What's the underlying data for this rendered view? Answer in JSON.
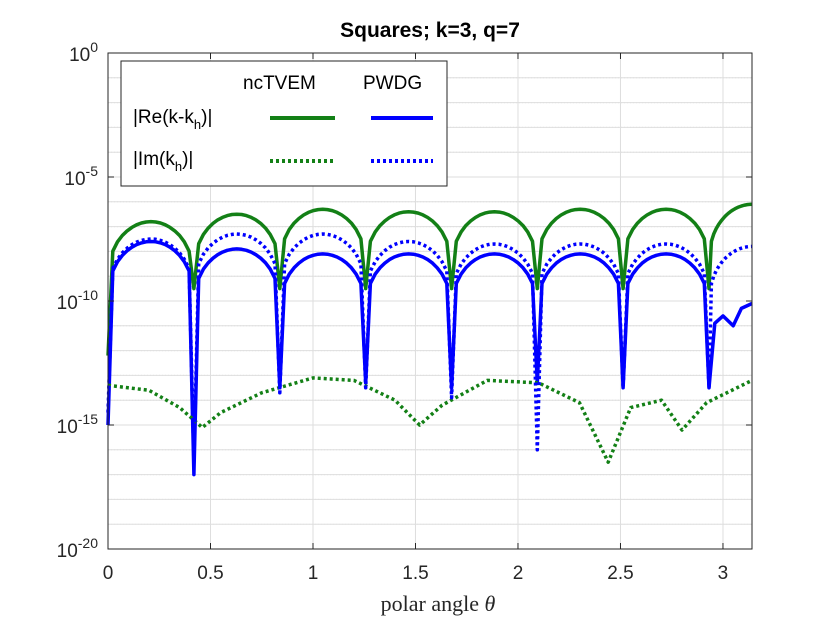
{
  "chart_data": {
    "type": "line",
    "title": "Squares; k=3, q=7",
    "xlabel": "polar angle θ",
    "xlabel_text": "polar angle",
    "xlabel_symbol": "θ",
    "ylabel": "",
    "yscale": "log",
    "xlim": [
      0,
      3.1416
    ],
    "ylim_exponents": [
      -20,
      0
    ],
    "grid": true,
    "x_ticks": [
      "0",
      "0.5",
      "1",
      "1.5",
      "2",
      "2.5",
      "3"
    ],
    "x_tick_values": [
      0,
      0.5,
      1,
      1.5,
      2,
      2.5,
      3
    ],
    "y_ticks": [
      {
        "base": "10",
        "exp": "0",
        "value": 0
      },
      {
        "base": "10",
        "exp": "-5",
        "value": -5
      },
      {
        "base": "10",
        "exp": "-10",
        "value": -10
      },
      {
        "base": "10",
        "exp": "-15",
        "value": -15
      },
      {
        "base": "10",
        "exp": "-20",
        "value": -20
      }
    ],
    "legend": {
      "placement": "top-left",
      "columns": [
        "ncTVEM",
        "PWDG"
      ],
      "rows": [
        {
          "label_main": "|Re(k-k",
          "label_sub": "h",
          "label_end": ")|"
        },
        {
          "label_main": "|Im(k",
          "label_sub": "h",
          "label_end": ")|"
        }
      ]
    },
    "series": [
      {
        "name": "ncTVEM |Re(k-k_h)|",
        "color": "#138016",
        "style": "solid",
        "dips_x": [
          0,
          0.419,
          0.838,
          1.257,
          1.676,
          2.094,
          2.513,
          2.932
        ],
        "dips_log": [
          -12.2,
          -9.5,
          -9.5,
          -9.5,
          -9.5,
          -9.5,
          -9.5,
          -9.5
        ],
        "peaks_x": [
          0.21,
          0.63,
          1.05,
          1.47,
          1.89,
          2.3,
          2.72,
          3.1416
        ],
        "peaks_log": [
          -6.8,
          -6.5,
          -6.3,
          -6.4,
          -6.4,
          -6.3,
          -6.3,
          -6.1
        ]
      },
      {
        "name": "PWDG |Re(k-k_h)|",
        "color": "#0000ff",
        "style": "solid",
        "dips_x": [
          0,
          0.419,
          0.838,
          1.257,
          1.676,
          2.094,
          2.513,
          2.932
        ],
        "dips_log": [
          -15.0,
          -17.0,
          -13.5,
          -13.3,
          -13.5,
          -13.3,
          -13.5,
          -13.5
        ],
        "peaks_x": [
          0.21,
          0.63,
          1.05,
          1.47,
          1.89,
          2.3,
          2.72
        ],
        "peaks_log": [
          -7.6,
          -7.9,
          -8.1,
          -8.1,
          -8.1,
          -8.1,
          -8.1
        ],
        "tail": [
          [
            2.96,
            -10.9
          ],
          [
            3.0,
            -10.6
          ],
          [
            3.05,
            -11.0
          ],
          [
            3.09,
            -10.3
          ],
          [
            3.1416,
            -10.1
          ]
        ]
      },
      {
        "name": "ncTVEM |Im(k_h)|",
        "color": "#138016",
        "style": "dotted",
        "points": [
          [
            0,
            -13.4
          ],
          [
            0.2,
            -13.6
          ],
          [
            0.35,
            -14.3
          ],
          [
            0.46,
            -15.1
          ],
          [
            0.55,
            -14.5
          ],
          [
            0.75,
            -13.7
          ],
          [
            1.0,
            -13.1
          ],
          [
            1.2,
            -13.2
          ],
          [
            1.4,
            -14.0
          ],
          [
            1.52,
            -15.0
          ],
          [
            1.63,
            -14.2
          ],
          [
            1.85,
            -13.2
          ],
          [
            2.1,
            -13.3
          ],
          [
            2.3,
            -14.1
          ],
          [
            2.44,
            -16.5
          ],
          [
            2.55,
            -14.3
          ],
          [
            2.7,
            -14.0
          ],
          [
            2.8,
            -15.2
          ],
          [
            2.92,
            -14.1
          ],
          [
            3.1416,
            -13.2
          ]
        ]
      },
      {
        "name": "PWDG |Im(k_h)|",
        "color": "#0000ff",
        "style": "dotted",
        "dips_x": [
          0,
          0.419,
          0.838,
          1.257,
          1.676,
          2.094,
          2.513,
          2.932
        ],
        "dips_log": [
          -14.5,
          -16.5,
          -13.7,
          -13.5,
          -13.9,
          -16.0,
          -13.5,
          -13.5
        ],
        "peaks_x": [
          0.21,
          0.63,
          1.05,
          1.47,
          1.89,
          2.3,
          2.72,
          3.1416
        ],
        "peaks_log": [
          -7.5,
          -7.3,
          -7.3,
          -7.6,
          -7.7,
          -7.7,
          -7.7,
          -7.8
        ]
      }
    ]
  }
}
